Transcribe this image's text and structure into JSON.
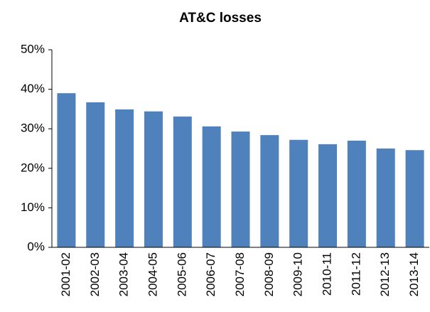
{
  "chart_data": {
    "type": "bar",
    "title": "AT&C losses",
    "categories": [
      "2001-02",
      "2002-03",
      "2003-04",
      "2004-05",
      "2005-06",
      "2006-07",
      "2007-08",
      "2008-09",
      "2009-10",
      "2010-11",
      "2011-12",
      "2012-13",
      "2013-14"
    ],
    "values": [
      39.0,
      36.7,
      34.9,
      34.4,
      33.1,
      30.6,
      29.3,
      28.4,
      27.2,
      26.1,
      27.0,
      25.0,
      24.6
    ],
    "color": "#4f81bd",
    "ylim": [
      0,
      50
    ],
    "yticks": [
      {
        "value": 0,
        "label": "0%"
      },
      {
        "value": 10,
        "label": "10%"
      },
      {
        "value": 20,
        "label": "20%"
      },
      {
        "value": 30,
        "label": "30%"
      },
      {
        "value": 40,
        "label": "40%"
      },
      {
        "value": 50,
        "label": "50%"
      }
    ],
    "grid": false
  }
}
